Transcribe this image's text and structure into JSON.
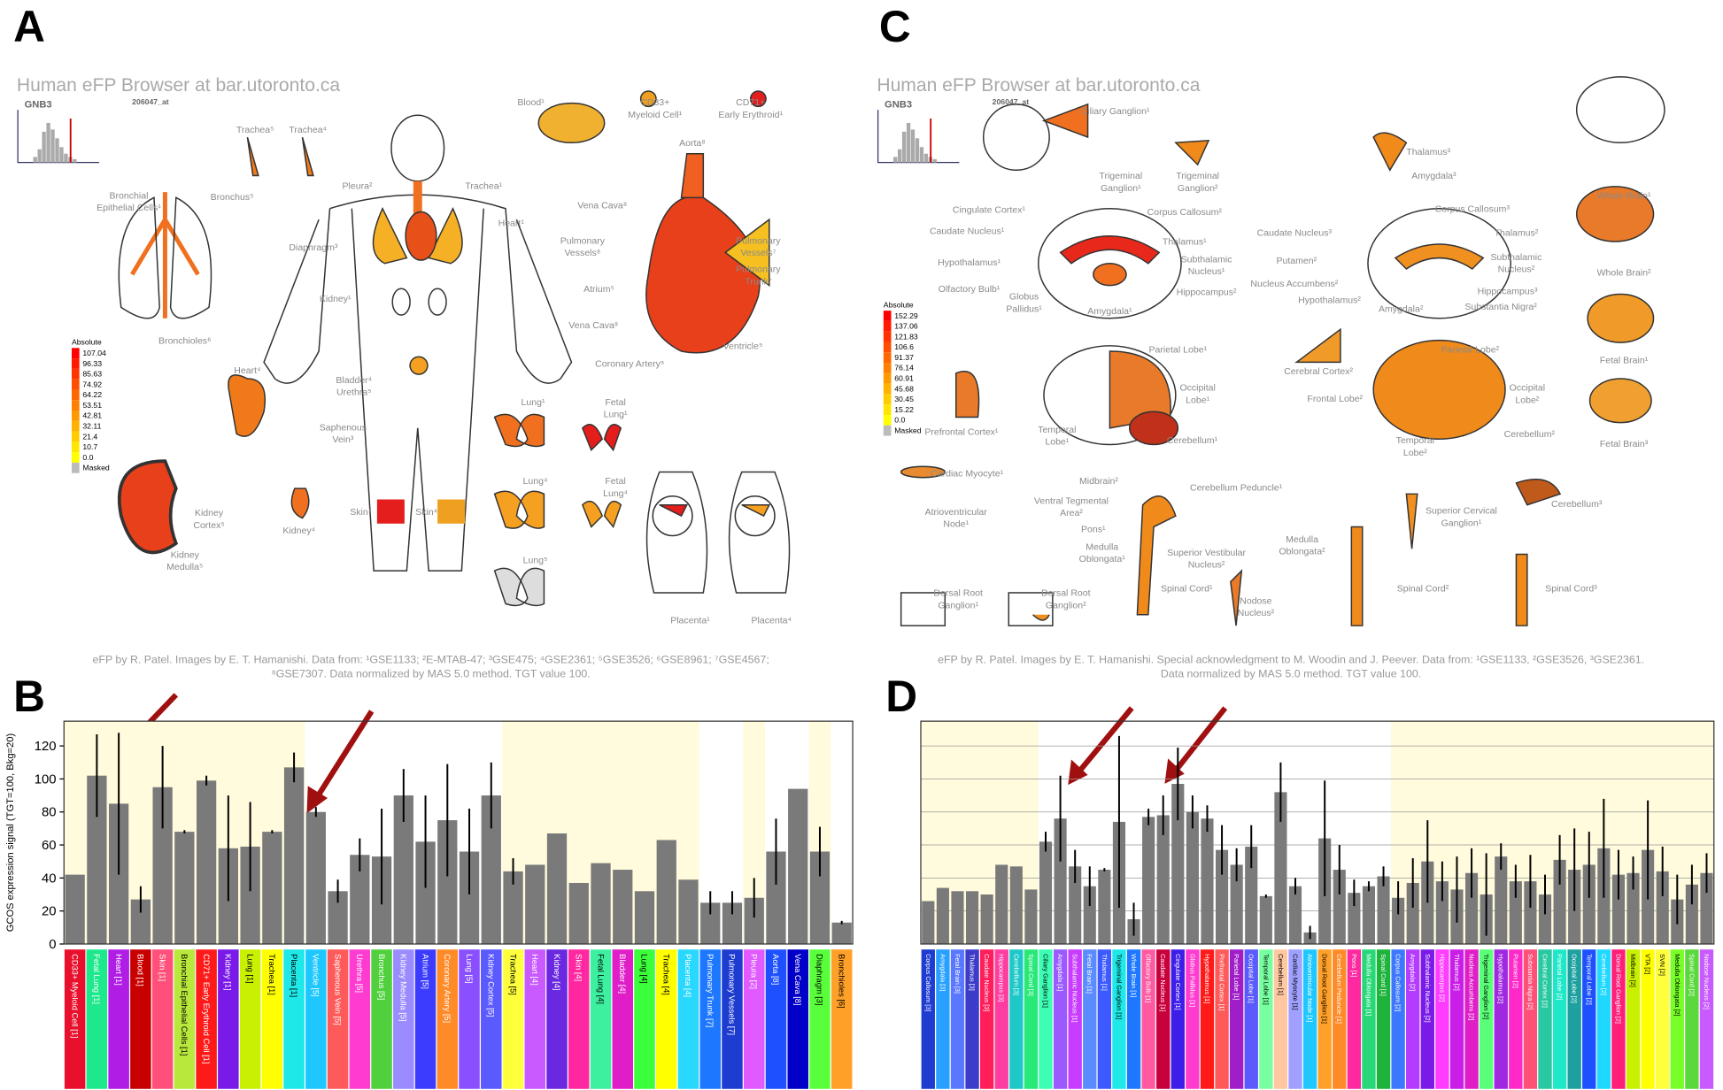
{
  "panel_letters": [
    "A",
    "B",
    "C",
    "D"
  ],
  "efp": [
    {
      "title": "Human eFP Browser at bar.utoronto.ca",
      "gene": "GNB3",
      "probe": "206047_at",
      "scale_title": "Absolute",
      "scale": [
        "107.04",
        "96.33",
        "85.63",
        "74.92",
        "64.22",
        "53.51",
        "42.81",
        "32.11",
        "21.4",
        "10.7",
        "0.0"
      ],
      "masked": "Masked",
      "labels": [
        [
          "Trachea⁵"
        ],
        [
          "Trachea⁴"
        ],
        [
          "Bronchial",
          "Epithelial Cells¹"
        ],
        [
          "Bronchus⁵"
        ],
        [
          "Bronchioles⁶"
        ],
        [
          "Pleura²"
        ],
        [
          "Trachea¹"
        ],
        [
          "Heart¹"
        ],
        [
          "Diaphragm³"
        ],
        [
          "Kidney¹"
        ],
        [
          "Bladder⁴",
          "Urethra⁵"
        ],
        [
          "Saphenous",
          "Vein³"
        ],
        [
          "Skin¹"
        ],
        [
          "Skin⁴"
        ],
        [
          "Heart⁴"
        ],
        [
          "Kidney",
          "Cortex⁵"
        ],
        [
          "Kidney",
          "Medulla⁵"
        ],
        [
          "Kidney⁴"
        ],
        [
          "Blood¹"
        ],
        [
          "CD33+",
          "Myeloid Cell¹"
        ],
        [
          "CD71+",
          "Early Erythroid¹"
        ],
        [
          "Aorta⁸"
        ],
        [
          "Vena Cava⁸"
        ],
        [
          "Pulmonary",
          "Vessels⁸"
        ],
        [
          "Pulmonary",
          "Vessels⁷"
        ],
        [
          "Pulmonary",
          "Trunk⁷"
        ],
        [
          "Atrium⁵"
        ],
        [
          "Vena Cava⁸"
        ],
        [
          "Ventricle⁵"
        ],
        [
          "Coronary Artery⁵"
        ],
        [
          "Lung¹"
        ],
        [
          "Fetal",
          "Lung¹"
        ],
        [
          "Lung⁴"
        ],
        [
          "Fetal",
          "Lung⁴"
        ],
        [
          "Lung⁵"
        ],
        [
          "Placenta¹"
        ],
        [
          "Placenta⁴"
        ]
      ],
      "credit": [
        "eFP by R. Patel. Images by E. T. Hamanishi. Data from: ¹GSE1133; ²E-MTAB-47; ³GSE475; ⁴GSE2361; ⁵GSE3526; ⁶GSE8961; ⁷GSE4567;",
        "⁸GSE7307. Data normalized  by MAS 5.0 method. TGT value 100."
      ]
    },
    {
      "title": "Human eFP Browser at bar.utoronto.ca",
      "gene": "GNB3",
      "probe": "206047_at",
      "scale_title": "Absolute",
      "scale": [
        "152.29",
        "137.06",
        "121.83",
        "106.6",
        "91.37",
        "76.14",
        "60.91",
        "45.68",
        "30.45",
        "15.22",
        "0.0"
      ],
      "masked": "Masked",
      "labels": [
        [
          "Ciliary Ganglion¹"
        ],
        [
          "Trigeminal",
          "Ganglion¹"
        ],
        [
          "Trigeminal",
          "Ganglion²"
        ],
        [
          "Thalamus³"
        ],
        [
          "Amygdala³"
        ],
        [
          "Whole Brain¹"
        ],
        [
          "Cingulate Cortex¹"
        ],
        [
          "Corpus Callosum²"
        ],
        [
          "Caudate Nucleus¹"
        ],
        [
          "Thalamus¹"
        ],
        [
          "Hypothalamus¹"
        ],
        [
          "Subthalamic",
          "Nucleus¹"
        ],
        [
          "Olfactory Bulb¹"
        ],
        [
          "Globus",
          "Pallidus¹"
        ],
        [
          "Hippocampus²"
        ],
        [
          "Amygdala¹"
        ],
        [
          "Corpus Callosum³"
        ],
        [
          "Caudate Nucleus³"
        ],
        [
          "Thalamus²"
        ],
        [
          "Putamen²"
        ],
        [
          "Subthalamic",
          "Nucleus²"
        ],
        [
          "Nucleus Accumbens²"
        ],
        [
          "Hypothalamus²"
        ],
        [
          "Hippocampus³"
        ],
        [
          "Amygdala²"
        ],
        [
          "Substantia Nigra²"
        ],
        [
          "Whole Brain²"
        ],
        [
          "Fetal Brain¹"
        ],
        [
          "Fetal Brain³"
        ],
        [
          "Parietal Lobe¹"
        ],
        [
          "Occipital",
          "Lobe¹"
        ],
        [
          "Temporal",
          "Lobe¹"
        ],
        [
          "Cerebellum¹"
        ],
        [
          "Prefrontal Cortex¹"
        ],
        [
          "Cerebral Cortex²"
        ],
        [
          "Parietal Lobe²"
        ],
        [
          "Frontal Lobe²"
        ],
        [
          "Occipital",
          "Lobe²"
        ],
        [
          "Temporal",
          "Lobe²"
        ],
        [
          "Cerebellum²"
        ],
        [
          "Cardiac Myocyte¹"
        ],
        [
          "Atrioventricular",
          "Node¹"
        ],
        [
          "Midbrain²"
        ],
        [
          "Cerebellum Peduncle¹"
        ],
        [
          "Ventral Tegmental",
          "Area²"
        ],
        [
          "Pons¹"
        ],
        [
          "Medulla",
          "Oblongata¹"
        ],
        [
          "Superior Vestibular",
          "Nucleus²"
        ],
        [
          "Spinal Cord¹"
        ],
        [
          "Dorsal Root",
          "Ganglion¹"
        ],
        [
          "Dorsal Root",
          "Ganglion²"
        ],
        [
          "Medulla",
          "Oblongata²"
        ],
        [
          "Superior Cervical",
          "Ganglion¹"
        ],
        [
          "Cerebellum³"
        ],
        [
          "Nodose",
          "Nucleus²"
        ],
        [
          "Spinal Cord²"
        ],
        [
          "Spinal Cord³"
        ]
      ],
      "credit": [
        "eFP by R. Patel. Images by E. T. Hamanishi. Special acknowledgment to M. Woodin and J. Peever. Data from: ¹GSE1133, ²GSE3526, ³GSE2361.",
        "Data normalized by MAS 5.0 method. TGT value 100."
      ]
    }
  ],
  "chart_data": [
    {
      "type": "bar",
      "y_label": "GCOS expression signal (TGT=100, Bkg=20)",
      "color": "#7a7a7a",
      "grid": false,
      "tick_labels": true,
      "ylim": [
        0,
        135
      ],
      "yticks": [
        0,
        20,
        40,
        60,
        80,
        100,
        120
      ],
      "categories": [
        "CD33+ Myeloid Cell [1]",
        "Fetal Lung [1]",
        "Heart [1]",
        "Blood [1]",
        "Skin [1]",
        "Bronchial Epithelial Cells [1]",
        "CD71+ Early Erythroid Cell [1]",
        "Kidney [1]",
        "Lung [1]",
        "Trachea [1]",
        "Placenta [1]",
        "Ventricle [5]",
        "Saphenous Vein [5]",
        "Urethra [5]",
        "Bronchus [5]",
        "Kidney Medulla [5]",
        "Atrium [5]",
        "Coronary Artery [5]",
        "Lung [5]",
        "Kidney Cortex [5]",
        "Trachea [5]",
        "Heart [4]",
        "Kidney [4]",
        "Skin [4]",
        "Fetal Lung [4]",
        "Bladder [4]",
        "Lung [4]",
        "Trachea [4]",
        "Placenta [4]",
        "Pulmonary Trunk [7]",
        "Pulmonary Vessels [7]",
        "Pleura [2]",
        "Aorta [8]",
        "Vena Cava [8]",
        "Diaphragm [3]",
        "Bronchioles [6]"
      ],
      "values": [
        42,
        102,
        85,
        27,
        95,
        68,
        99,
        58,
        59,
        68,
        107,
        80,
        32,
        54,
        53,
        90,
        62,
        75,
        56,
        90,
        44,
        48,
        67,
        37,
        49,
        45,
        32,
        63,
        39,
        25,
        25,
        28,
        56,
        94,
        56,
        13
      ],
      "errors": [
        null,
        25,
        43,
        8,
        25,
        1,
        3,
        32,
        27,
        1,
        9,
        3,
        7,
        10,
        29,
        16,
        28,
        34,
        26,
        20,
        8,
        null,
        null,
        null,
        null,
        null,
        null,
        null,
        null,
        7,
        7,
        12,
        20,
        null,
        15,
        1
      ],
      "category_colors": [
        "#e8102c",
        "#1ee88c",
        "#b01ee6",
        "#c80000",
        "#ff4f7a",
        "#b8e83c",
        "#ff1a1a",
        "#7a1ae8",
        "#c8f000",
        "#ffff00",
        "#1ee8e8",
        "#1ec8ff",
        "#ff5a5a",
        "#ff3ccf",
        "#50d03c",
        "#9a8cff",
        "#3c3cff",
        "#ff8a28",
        "#8a50ff",
        "#5a5aff",
        "#ffff3c",
        "#c85aff",
        "#6a28e0",
        "#ff28a0",
        "#3cf0a0",
        "#e01ec8",
        "#3cff3c",
        "#ffff00",
        "#28d8ff",
        "#1e78ff",
        "#1e3cd0",
        "#e05aff",
        "#1e50ff",
        "#0000c8",
        "#5aff3c",
        "#ffa028"
      ]
    },
    {
      "type": "bar",
      "color": "#7a7a7a",
      "grid": true,
      "tick_labels": false,
      "ylim": [
        0,
        135
      ],
      "yticks": [
        20,
        40,
        60,
        80,
        100,
        120
      ],
      "categories": [
        "Corpus Callosum [3]",
        "Amygdala [3]",
        "Fetal Brain [3]",
        "Thalamus [3]",
        "Caudate Nucleus [3]",
        "Hippocampus [3]",
        "Cerebellum [3]",
        "Spinal Cord [3]",
        "Ciliary Ganglion [1]",
        "Amygdala [1]",
        "Subthalamic Nucleus [1]",
        "Fetal Brain [1]",
        "Thalamus [1]",
        "Trigeminal Ganglion [1]",
        "Whole Brain [1]",
        "Olfactory Bulb [1]",
        "Caudate Nucleus [1]",
        "Cingulate Cortex [1]",
        "Globus Pallidus [1]",
        "Hypothalamus [1]",
        "Prefrontal Cortex [1]",
        "Parietal Lobe [1]",
        "Occipital Lobe [1]",
        "Temporal Lobe [1]",
        "Cerebellum [1]",
        "Cardiac Myocyte [1]",
        "Atrioventricular Node [1]",
        "Dorsal Root Ganglion [1]",
        "Cerebellum Peduncle [1]",
        "Pons [1]",
        "Medulla Oblongata [1]",
        "Spinal Cord [1]",
        "Corpus Callosum [2]",
        "Amygdala [2]",
        "Subthalamic Nucleus [2]",
        "Hippocampus [2]",
        "Thalamus [2]",
        "Nucleus Accumbens [2]",
        "Trigeminal Ganglion [2]",
        "Hypothalamus [2]",
        "Putamen [2]",
        "Substantia Nigra [2]",
        "Cerebral Cortex [2]",
        "Parietal Lobe [2]",
        "Occipital Lobe [2]",
        "Temporal Lobe [2]",
        "Cerebellum [2]",
        "Dorsal Root Ganglion [2]",
        "Midbrain [2]",
        "VTA [2]",
        "SVN [2]",
        "Medulla Oblongata [2]",
        "Spinal Cord [2]",
        "Nodose Nucleus [2]"
      ],
      "values": [
        26,
        34,
        32,
        32,
        30,
        48,
        47,
        33,
        62,
        76,
        47,
        35,
        45,
        74,
        15,
        77,
        78,
        97,
        80,
        76,
        57,
        48,
        59,
        29,
        92,
        35,
        7,
        64,
        45,
        31,
        35,
        41,
        28,
        37,
        50,
        38,
        33,
        43,
        30,
        53,
        38,
        38,
        30,
        51,
        45,
        48,
        58,
        42,
        43,
        57,
        44,
        27,
        36,
        43
      ],
      "errors": [
        null,
        null,
        null,
        null,
        null,
        null,
        null,
        null,
        6,
        26,
        10,
        12,
        1,
        52,
        10,
        5,
        12,
        22,
        10,
        8,
        15,
        10,
        13,
        1,
        18,
        5,
        4,
        35,
        15,
        8,
        3,
        6,
        10,
        15,
        25,
        12,
        20,
        15,
        25,
        8,
        10,
        16,
        12,
        15,
        25,
        20,
        30,
        15,
        10,
        30,
        15,
        15,
        12,
        12
      ],
      "category_colors": [
        "#1e3cd0",
        "#28a0ff",
        "#5a78ff",
        "#3c3cc8",
        "#ff1e5a",
        "#ff3ca0",
        "#1ec8c8",
        "#28e878",
        "#3cffb4",
        "#9a5aff",
        "#c83cff",
        "#5a8cff",
        "#3c5aff",
        "#1ee8e8",
        "#1e78ff",
        "#ff5aa0",
        "#c8003c",
        "#3c1ee8",
        "#ff3ccf",
        "#ff1a1a",
        "#ff5a5a",
        "#a01ec8",
        "#5a5aff",
        "#78ffa0",
        "#ffc8a0",
        "#a0a0ff",
        "#1ec8ff",
        "#ffa028",
        "#ff8a28",
        "#ff28a0",
        "#28d878",
        "#1eb43c",
        "#3c78ff",
        "#b43cff",
        "#7a1ae8",
        "#ff3cff",
        "#c81ee8",
        "#e01ec8",
        "#5aff78",
        "#a028e0",
        "#ff28c8",
        "#ff5078",
        "#28c8a0",
        "#1ee8c8",
        "#1ea0a0",
        "#1e50ff",
        "#1ed8ff",
        "#ff1e78",
        "#c8f000",
        "#ffff00",
        "#ffff3c",
        "#78ff28",
        "#5ad83c",
        "#c85aff"
      ]
    }
  ]
}
